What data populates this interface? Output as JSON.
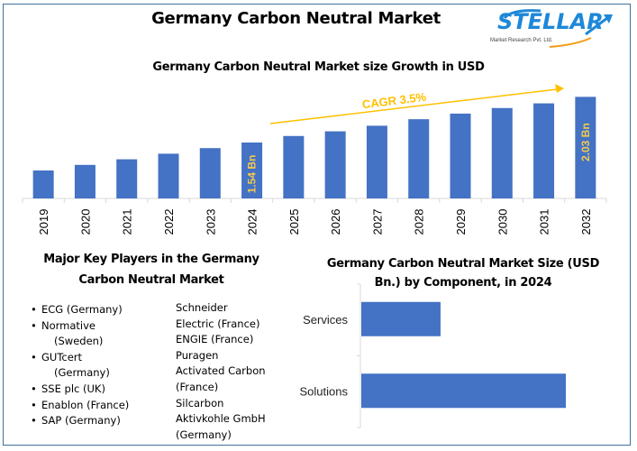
{
  "header": {
    "title": "Germany Carbon Neutral Market",
    "logo": {
      "name": "STELLAR",
      "tagline": "Market Research Pvt. Ltd."
    }
  },
  "colors": {
    "bar": "#4472C4",
    "accent_gold": "#FFC000",
    "label_gold": "#F2C94C",
    "frame": "#41719C",
    "axis": "#D9D9D9"
  },
  "chart_data": [
    {
      "type": "bar",
      "title": "Germany Carbon Neutral Market size Growth in USD",
      "xlabel": "",
      "ylabel": "",
      "units": "USD Bn",
      "categories": [
        "2019",
        "2020",
        "2021",
        "2022",
        "2023",
        "2024",
        "2025",
        "2026",
        "2027",
        "2028",
        "2029",
        "2030",
        "2031",
        "2032"
      ],
      "values": [
        1.24,
        1.3,
        1.36,
        1.42,
        1.48,
        1.54,
        1.61,
        1.66,
        1.72,
        1.79,
        1.85,
        1.91,
        1.96,
        2.03
      ],
      "ylim": [
        0.94,
        2.14
      ],
      "grid": false,
      "data_labels": [
        {
          "category": "2024",
          "text": "1.54 Bn"
        },
        {
          "category": "2032",
          "text": "2.03 Bn"
        }
      ],
      "annotation": {
        "text": "CAGR 3.5%",
        "type": "arrow",
        "from_category": "2025",
        "to_category": "2031"
      }
    },
    {
      "type": "bar",
      "orientation": "horizontal",
      "title": "Germany Carbon Neutral Market Size (USD Bn.) by Component, in 2024",
      "title_lines": [
        "Germany Carbon Neutral Market Size (USD",
        "Bn.) by Component, in 2024"
      ],
      "categories": [
        "Services",
        "Solutions"
      ],
      "values": [
        0.43,
        1.11
      ],
      "xlim": [
        0,
        1.5
      ],
      "grid": false
    }
  ],
  "players": {
    "title_lines": [
      "Major Key Players in the Germany",
      "Carbon Neutral Market"
    ],
    "col1": [
      {
        "lines": [
          "ECG (Germany)"
        ]
      },
      {
        "lines": [
          "Normative",
          "(Sweden)"
        ]
      },
      {
        "lines": [
          "GUTcert",
          "(Germany)"
        ]
      },
      {
        "lines": [
          "SSE plc (UK)"
        ]
      },
      {
        "lines": [
          "Enablon (France)"
        ]
      },
      {
        "lines": [
          "SAP (Germany)"
        ]
      }
    ],
    "col2": [
      "Schneider",
      "Electric (France)",
      "ENGIE (France)",
      "Puragen",
      "Activated Carbon",
      "(France)",
      "Silcarbon",
      "Aktivkohle GmbH",
      "(Germany)"
    ]
  }
}
